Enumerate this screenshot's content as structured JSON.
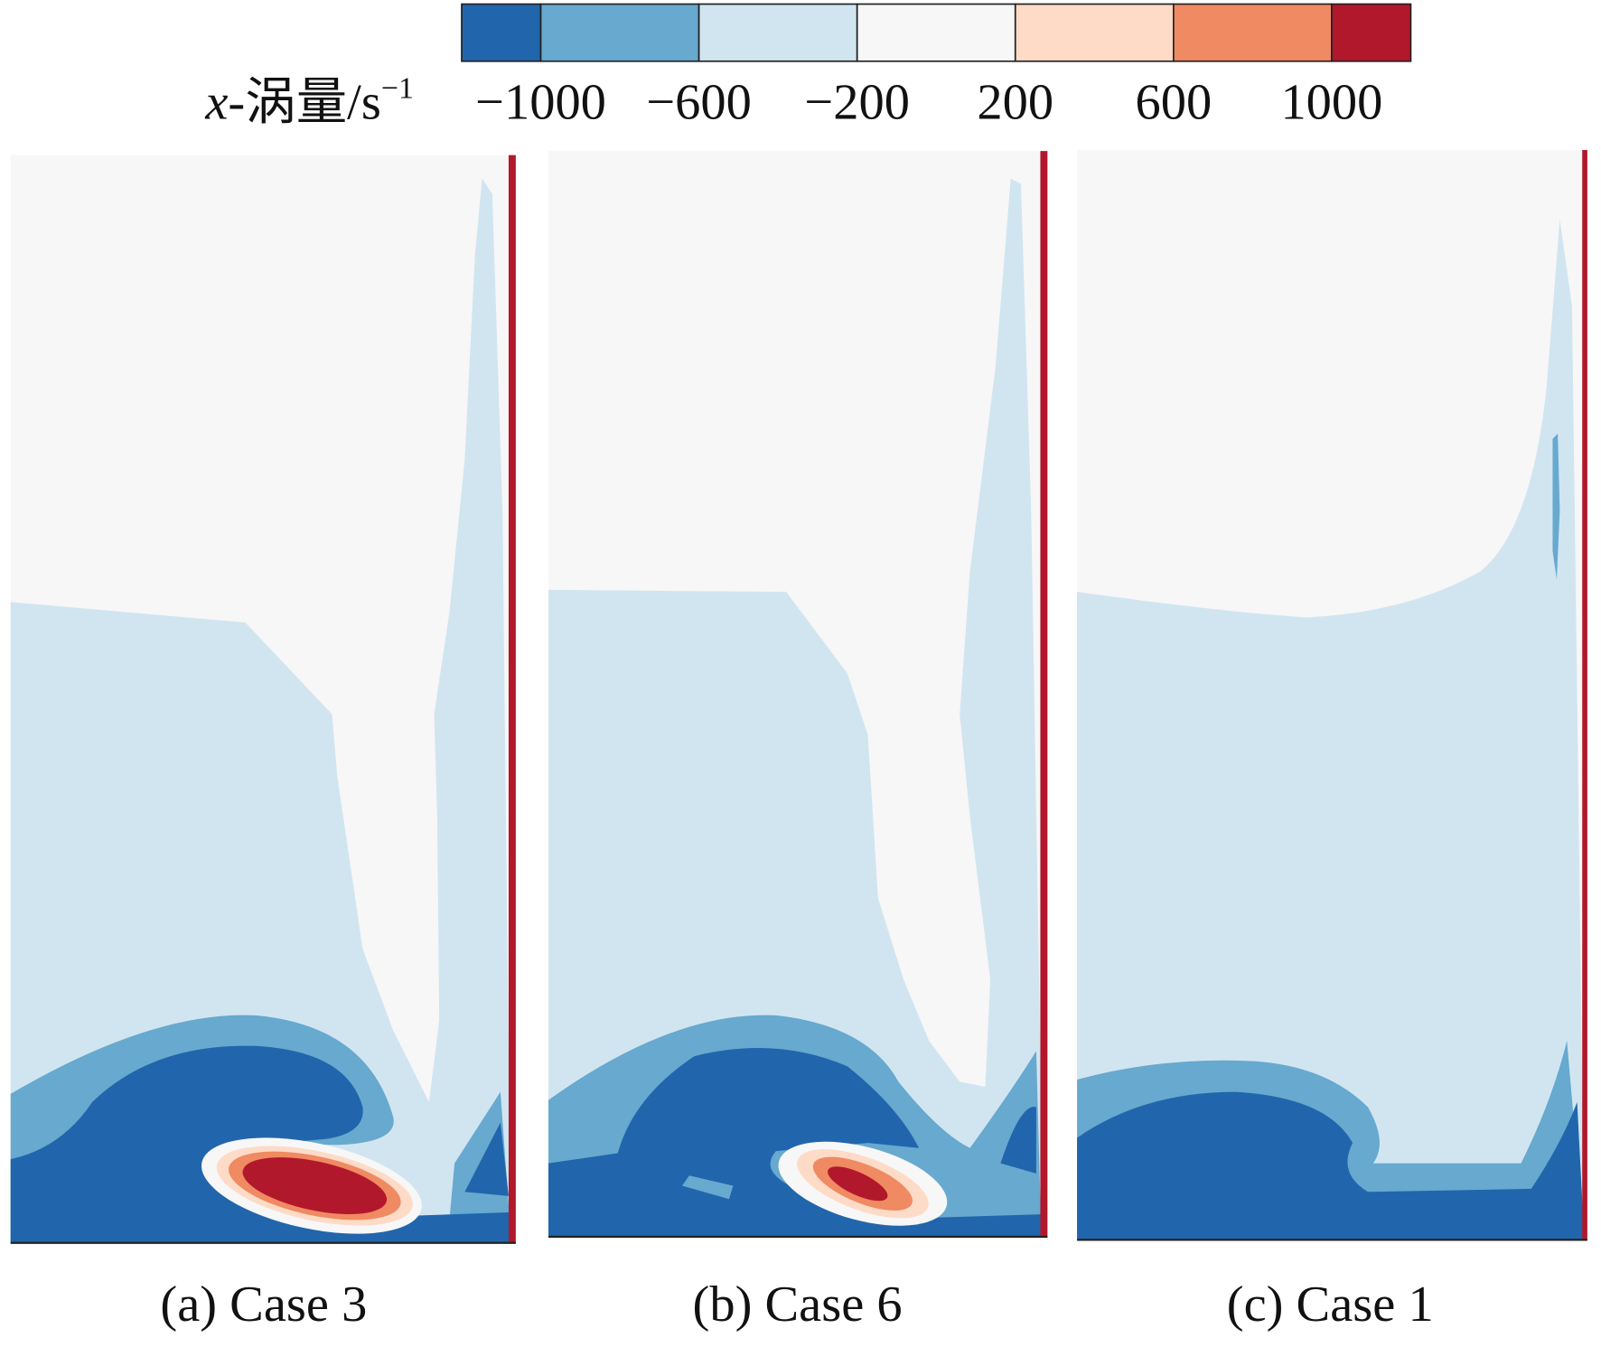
{
  "chart_data": {
    "type": "contour",
    "colorbar": {
      "label": {
        "variable": "x",
        "name": "-涡量/s",
        "exponent": "−1"
      },
      "clim": [
        -1200,
        1200
      ],
      "ticks": [
        {
          "value": -1000,
          "label": "−1000"
        },
        {
          "value": -600,
          "label": "−600"
        },
        {
          "value": -200,
          "label": "−200"
        },
        200,
        600,
        1000
      ],
      "colors": [
        "#2166ac",
        "#67a9cf",
        "#d1e5f0",
        "#f7f7f7",
        "#fddbc7",
        "#ef8a62",
        "#b2182b"
      ]
    },
    "panels": [
      {
        "caption": "(a) Case 3"
      },
      {
        "caption": "(b) Case 6"
      },
      {
        "caption": "(c) Case 1"
      }
    ]
  }
}
